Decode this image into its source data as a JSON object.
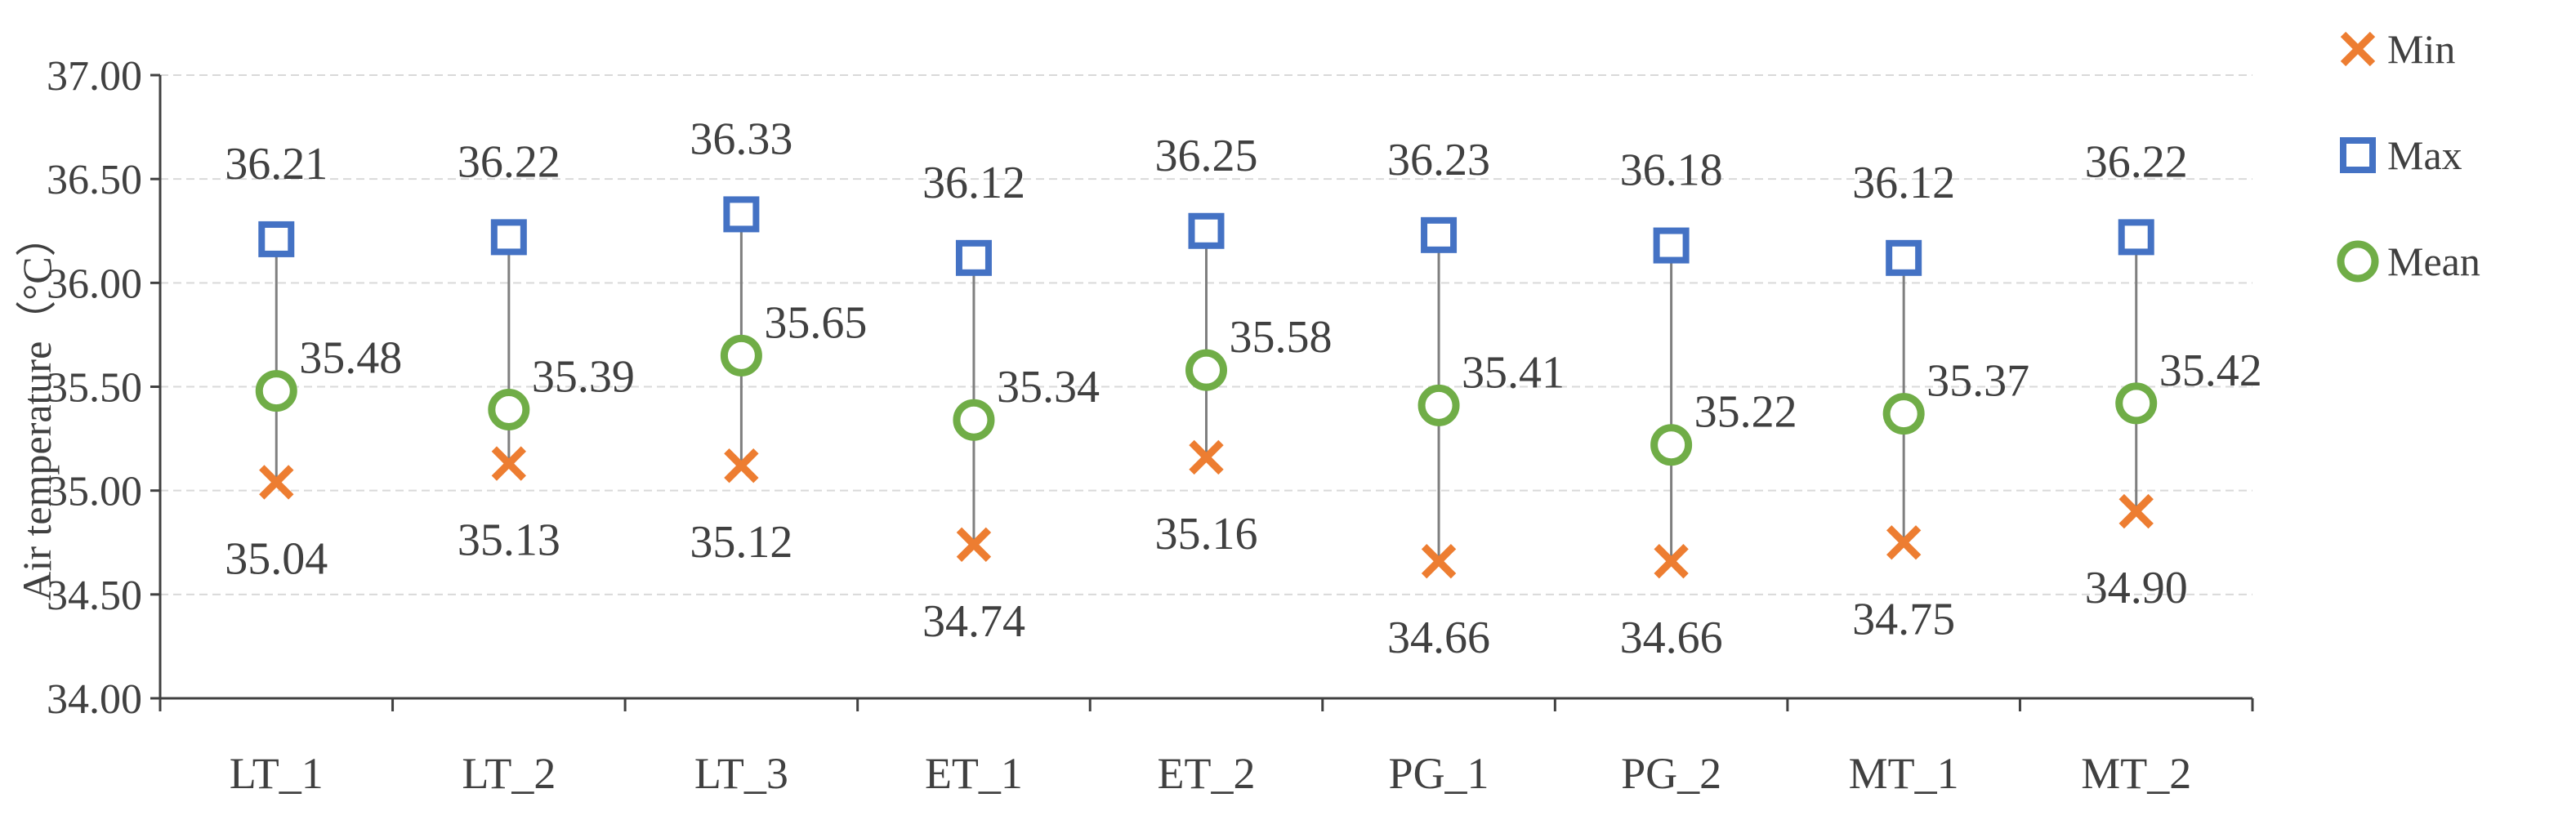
{
  "chart_data": {
    "type": "scatter",
    "title": "",
    "xlabel": "",
    "ylabel": "Air temperature（°C）",
    "ylim": [
      34.0,
      37.0
    ],
    "ytick_step": 0.5,
    "ytick_labels": [
      "34.00",
      "34.50",
      "35.00",
      "35.50",
      "36.00",
      "36.50",
      "37.00"
    ],
    "grid": true,
    "legend_position": "top-right",
    "categories": [
      "LT_1",
      "LT_2",
      "LT_3",
      "ET_1",
      "ET_2",
      "PG_1",
      "PG_2",
      "MT_1",
      "MT_2"
    ],
    "series": [
      {
        "name": "Min",
        "marker": "x",
        "color": "#ED7D31",
        "values": [
          35.04,
          35.13,
          35.12,
          34.74,
          35.16,
          34.66,
          34.66,
          34.75,
          34.9
        ],
        "labels": [
          "35.04",
          "35.13",
          "35.12",
          "34.74",
          "35.16",
          "34.66",
          "34.66",
          "34.75",
          "34.90"
        ]
      },
      {
        "name": "Max",
        "marker": "square",
        "color": "#4472C4",
        "values": [
          36.21,
          36.22,
          36.33,
          36.12,
          36.25,
          36.23,
          36.18,
          36.12,
          36.22
        ],
        "labels": [
          "36.21",
          "36.22",
          "36.33",
          "36.12",
          "36.25",
          "36.23",
          "36.18",
          "36.12",
          "36.22"
        ]
      },
      {
        "name": "Mean",
        "marker": "circle",
        "color": "#70AD47",
        "values": [
          35.48,
          35.39,
          35.65,
          35.34,
          35.58,
          35.41,
          35.22,
          35.37,
          35.42
        ],
        "labels": [
          "35.48",
          "35.39",
          "35.65",
          "35.34",
          "35.58",
          "35.41",
          "35.22",
          "35.37",
          "35.42"
        ]
      }
    ],
    "range_line_color": "#7F7F7F",
    "grid_color": "#D9D9D9",
    "axis_color": "#404040"
  }
}
